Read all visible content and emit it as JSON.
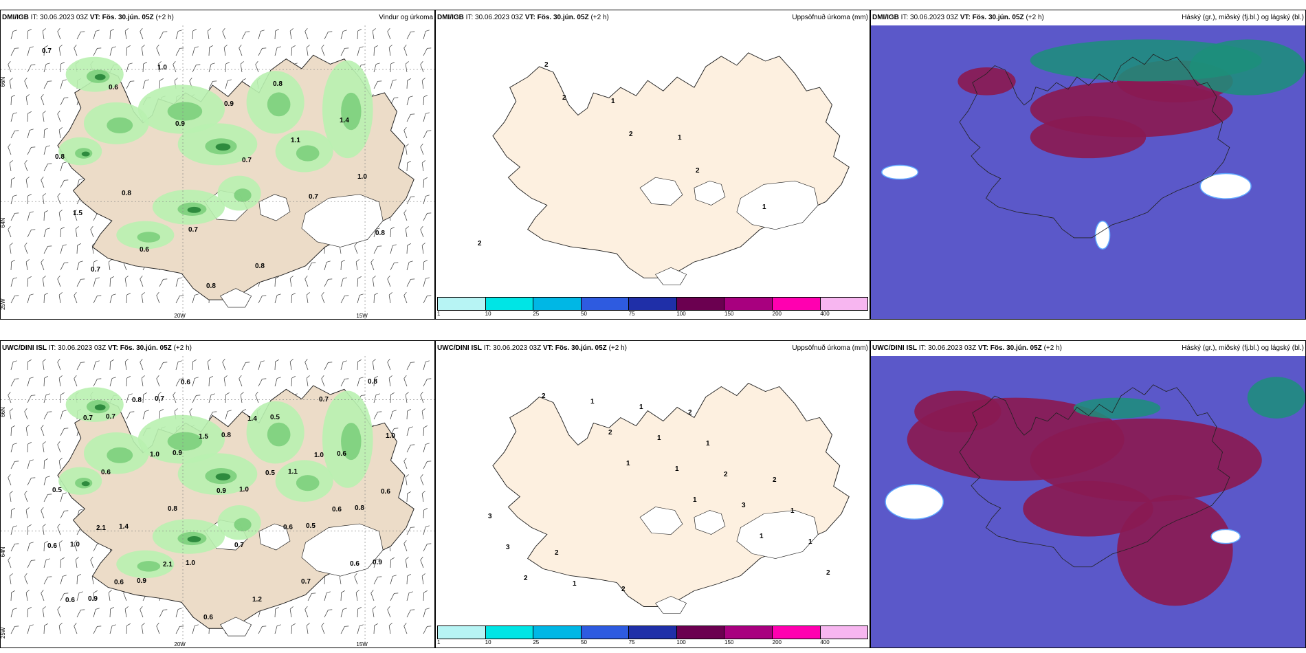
{
  "panels": [
    {
      "id": "p1",
      "source": "DMI/IGB",
      "it_label": "IT:",
      "it_value": "30.06.2023 03Z",
      "vt_label": "VT:",
      "vt_value": "Fös. 30.jún. 05Z",
      "lead": "(+2 h)",
      "product": "Vindur og úrkoma",
      "type": "wind",
      "grid_labels": {
        "lat_a": "66N",
        "lat_b": "64N",
        "lat_c": "25W",
        "lon_a": "20W",
        "lon_b": "15W"
      },
      "labels": [
        "0.7",
        "0.6",
        "0.9",
        "0.7",
        "0.7",
        "0.8",
        "0.7",
        "1.0",
        "0.9",
        "1.1",
        "1.0",
        "1.5",
        "0.6",
        "0.8",
        "0.8",
        "1.4",
        "0.8",
        "0.8",
        "0.7",
        "0.8"
      ]
    },
    {
      "id": "p2",
      "source": "DMI/IGB",
      "it_label": "IT:",
      "it_value": "30.06.2023 03Z",
      "vt_label": "VT:",
      "vt_value": "Fös. 30.jún. 05Z",
      "lead": "(+2 h)",
      "product": "Uppsöfnuð úrkoma (mm)",
      "type": "precip",
      "labels": [
        "2",
        "2",
        "2",
        "1",
        "2",
        "2",
        "1",
        "1"
      ]
    },
    {
      "id": "p3",
      "source": "DMI/IGB",
      "it_label": "IT:",
      "it_value": "30.06.2023 03Z",
      "vt_label": "VT:",
      "vt_value": "Fös. 30.jún. 05Z",
      "lead": "(+2 h)",
      "product": "Háský (gr.), miðský (fj.bl.) og lágský (bl.)",
      "type": "cloud"
    },
    {
      "id": "p4",
      "source": "UWC/DINI ISL",
      "it_label": "IT:",
      "it_value": "30.06.2023 03Z",
      "vt_label": "VT:",
      "vt_value": "Fös. 30.jún. 05Z",
      "lead": "(+2 h)",
      "product": "",
      "type": "wind",
      "grid_labels": {
        "lat_a": "66N",
        "lat_b": "64N",
        "lat_c": "25W",
        "lon_a": "20W",
        "lon_b": "15W"
      },
      "labels": [
        "0.7",
        "0.9",
        "1.0",
        "0.5",
        "0.9",
        "0.9",
        "0.7",
        "0.8",
        "1.1",
        "0.8",
        "1.0",
        "0.9",
        "0.6",
        "0.5",
        "0.6",
        "0.5",
        "1.4",
        "1.0",
        "1.2",
        "0.7",
        "1.0",
        "0.6",
        "0.8",
        "0.7",
        "0.7",
        "0.8",
        "0.7",
        "1.0",
        "0.9",
        "0.6",
        "0.6",
        "0.6",
        "0.8",
        "1.5",
        "0.5",
        "0.6",
        "0.6",
        "0.6",
        "0.6",
        "1.4",
        "1.0",
        "0.6",
        "2.1",
        "2.1"
      ]
    },
    {
      "id": "p5",
      "source": "UWC/DINI ISL",
      "it_label": "IT:",
      "it_value": "30.06.2023 03Z",
      "vt_label": "VT:",
      "vt_value": "Fös. 30.jún. 05Z",
      "lead": "(+2 h)",
      "product": "Uppsöfnuð úrkoma (mm)",
      "type": "precip",
      "labels": [
        "1",
        "1",
        "1",
        "2",
        "2",
        "2",
        "1",
        "3",
        "1",
        "2",
        "1",
        "1",
        "2",
        "1",
        "3",
        "1",
        "1",
        "1",
        "2",
        "3",
        "2",
        "2",
        "2"
      ]
    },
    {
      "id": "p6",
      "source": "UWC/DINI ISL",
      "it_label": "IT:",
      "it_value": "30.06.2023 03Z",
      "vt_label": "VT:",
      "vt_value": "Fös. 30.jún. 05Z",
      "lead": "(+2 h)",
      "product": "Háský (gr.), miðský (fj.bl.) og lágský (bl.)",
      "type": "cloud"
    }
  ],
  "colorbar": {
    "colors": [
      "#b7f4f4",
      "#00e5e5",
      "#00b7e5",
      "#2e5be0",
      "#1f2fa8",
      "#6b0050",
      "#a8007f",
      "#ff00b0",
      "#f7b6f0"
    ],
    "ticks": [
      "1",
      "10",
      "25",
      "50",
      "75",
      "100",
      "150",
      "200",
      "400"
    ]
  },
  "colors": {
    "land": "#ecdcc8",
    "land_precip": "#fdf0e0",
    "sea": "#ffffff",
    "precip_light": "#b9f1b0",
    "precip_mid": "#7ccf7c",
    "precip_dark": "#2e8b3e",
    "cloud_sea": "#5b58c9",
    "cloud_high": "#8a1a52",
    "cloud_mid": "#1c8f7a"
  }
}
